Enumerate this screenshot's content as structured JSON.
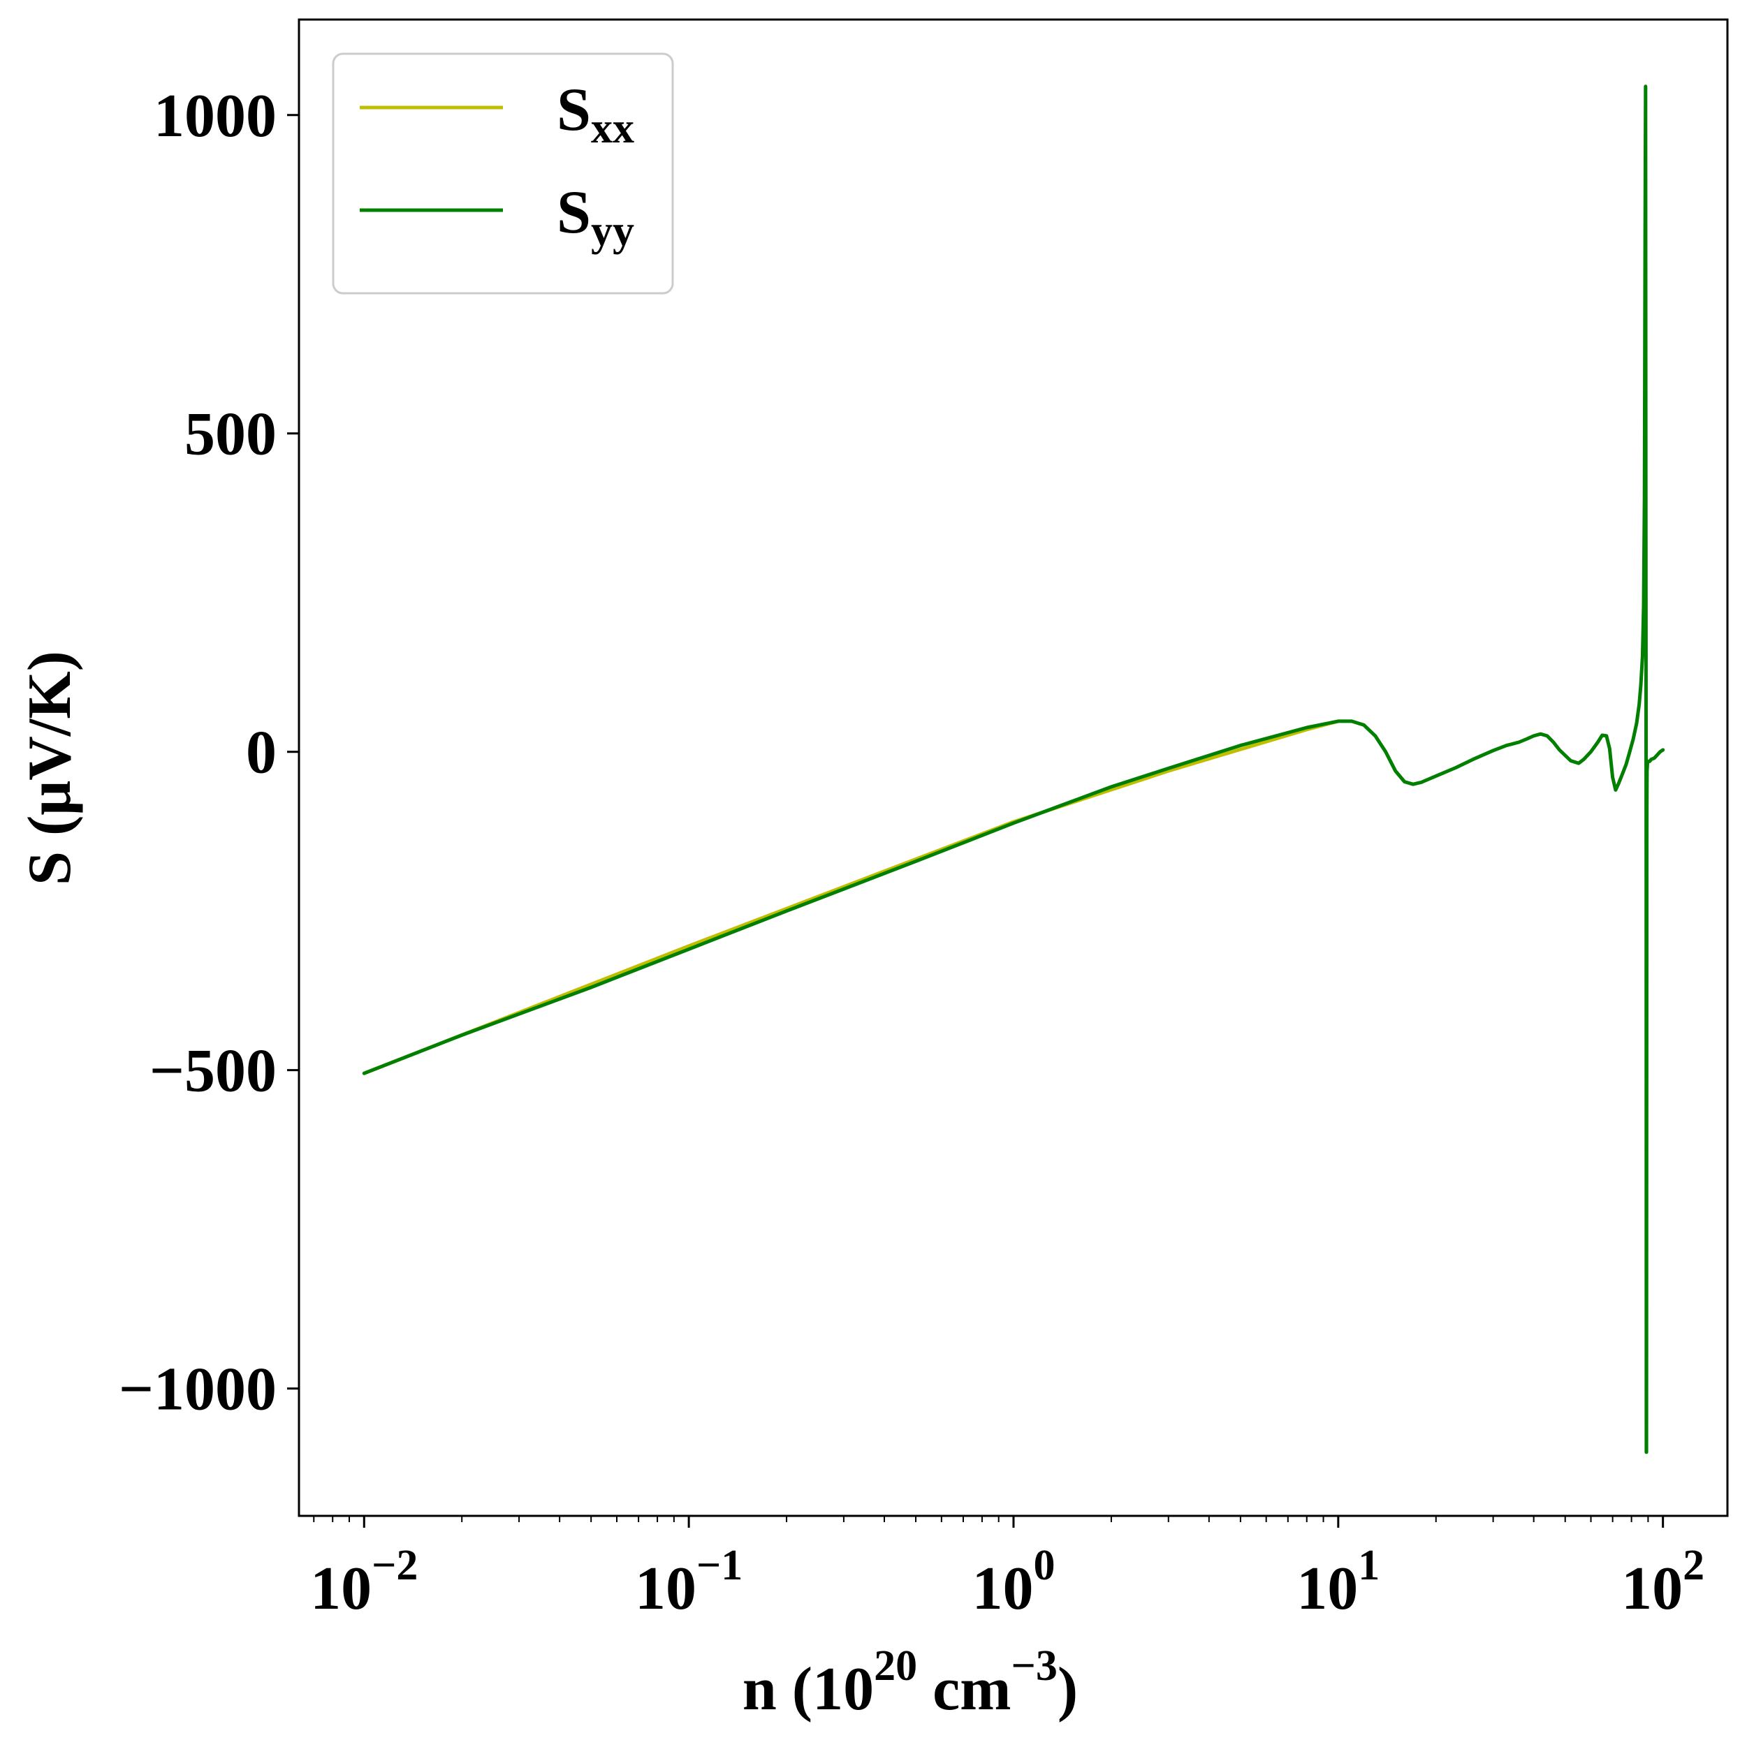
{
  "chart_data": {
    "type": "line",
    "xscale": "log",
    "xlim": [
      0.0063,
      158
    ],
    "ylim": [
      -1200,
      1150
    ],
    "grid": false,
    "legend_placement": "top-left",
    "xlabel": {
      "base": "n (10",
      "exp1": "20",
      "mid": " cm",
      "exp2": "−3",
      "end": ")"
    },
    "ylabel": "S (μV/K)",
    "yticks": [
      {
        "value": -1000,
        "label": "−1000"
      },
      {
        "value": -500,
        "label": "−500"
      },
      {
        "value": 0,
        "label": "0"
      },
      {
        "value": 500,
        "label": "500"
      },
      {
        "value": 1000,
        "label": "1000"
      }
    ],
    "xticks": [
      {
        "value": 0.01,
        "base": "10",
        "exp": "−2"
      },
      {
        "value": 0.1,
        "base": "10",
        "exp": "−1"
      },
      {
        "value": 1,
        "base": "10",
        "exp": "0"
      },
      {
        "value": 10,
        "base": "10",
        "exp": "1"
      },
      {
        "value": 100,
        "base": "10",
        "exp": "2"
      }
    ],
    "colors": {
      "Sxx": "#bfbf00",
      "Syy": "#007f00",
      "axis": "#000000",
      "legend_border": "#cccccc"
    },
    "series": [
      {
        "name": "Sxx",
        "name_base": "S",
        "name_sub": "xx",
        "color": "#bfbf00",
        "x": [
          0.01,
          0.1,
          1,
          3,
          8,
          10
        ],
        "y": [
          -505,
          -305,
          -110,
          -30,
          35,
          48
        ]
      },
      {
        "name": "Syy",
        "name_base": "S",
        "name_sub": "yy",
        "color": "#007f00",
        "x": [
          0.01,
          0.02,
          0.05,
          0.1,
          0.2,
          0.5,
          1,
          2,
          3,
          5,
          8,
          10,
          11,
          12,
          13,
          14,
          15,
          16,
          17,
          18,
          20,
          23,
          26,
          30,
          33,
          36,
          38,
          40,
          42,
          44,
          46,
          48,
          52,
          55,
          57,
          60,
          63,
          65,
          67,
          68.5,
          70,
          71.5,
          73,
          75,
          77,
          79,
          81,
          83,
          84.5,
          85.5,
          86.5,
          87.2,
          87.7,
          88.1,
          88.4,
          88.6,
          88.8,
          88.9,
          89.0,
          89.1,
          89.2,
          89.35,
          89.6,
          90,
          91,
          92,
          94,
          96,
          98,
          100
        ],
        "y": [
          -505,
          -445,
          -370,
          -310,
          -250,
          -172,
          -112,
          -55,
          -26,
          10,
          38,
          48,
          48,
          42,
          25,
          0,
          -30,
          -47,
          -51,
          -48,
          -38,
          -25,
          -12,
          2,
          10,
          15,
          20,
          25,
          28,
          25,
          15,
          3,
          -14,
          -18,
          -12,
          0,
          15,
          26,
          25,
          5,
          -40,
          -60,
          -50,
          -35,
          -20,
          0,
          20,
          45,
          75,
          105,
          150,
          230,
          400,
          800,
          1045,
          400,
          -200,
          -1100,
          -1100,
          -500,
          -100,
          -30,
          -18,
          -15,
          -15,
          -12,
          -10,
          -5,
          0,
          3
        ]
      }
    ]
  }
}
